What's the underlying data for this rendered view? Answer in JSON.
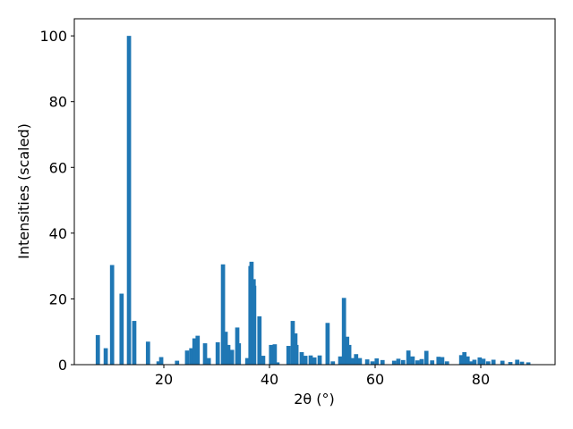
{
  "chart_data": {
    "type": "bar",
    "x_label": "2θ (°)",
    "y_label": "Intensities (scaled)",
    "color": "#1f77b4",
    "bar_width": 0.8,
    "x": [
      7.5,
      9.0,
      10.2,
      12.0,
      13.4,
      14.4,
      17.0,
      19.0,
      19.5,
      22.5,
      24.4,
      25.2,
      25.8,
      26.4,
      27.8,
      28.5,
      30.2,
      31.2,
      31.7,
      32.2,
      32.9,
      33.9,
      34.2,
      35.8,
      36.4,
      36.6,
      37.0,
      37.1,
      38.1,
      38.8,
      40.3,
      41.0,
      41.5,
      43.6,
      44.4,
      44.9,
      45.1,
      46.1,
      46.8,
      47.8,
      48.5,
      49.5,
      51.0,
      52.0,
      53.4,
      54.1,
      54.7,
      55.1,
      55.8,
      56.4,
      57.1,
      58.5,
      59.5,
      60.3,
      61.4,
      63.6,
      64.4,
      65.3,
      66.3,
      67.1,
      68.0,
      68.8,
      69.7,
      70.8,
      72.0,
      72.7,
      73.6,
      76.3,
      76.9,
      77.5,
      78.1,
      78.8,
      79.8,
      80.5,
      81.4,
      82.4,
      84.1,
      85.6,
      86.9,
      87.8,
      89.0
    ],
    "values": [
      9,
      5,
      30.3,
      21.6,
      100,
      13.3,
      7,
      1,
      2.3,
      1.2,
      4.3,
      5,
      8,
      8.8,
      6.5,
      2,
      6.8,
      30.5,
      10,
      6,
      4.5,
      11.3,
      6.5,
      2,
      30,
      31.3,
      26,
      24,
      14.7,
      2.7,
      6,
      6.2,
      0.7,
      5.7,
      13.3,
      9.5,
      6,
      3.8,
      2.7,
      2.8,
      2.2,
      2.8,
      12.7,
      1,
      2.5,
      20.3,
      8.5,
      6,
      2,
      3.2,
      2,
      1.6,
      1,
      1.9,
      1.4,
      1.2,
      1.8,
      1.4,
      4.3,
      2.5,
      1.3,
      1.7,
      4.2,
      1.3,
      2.4,
      2.3,
      1,
      2.9,
      3.8,
      2.5,
      1,
      1.5,
      2.2,
      1.8,
      1,
      1.5,
      1.2,
      0.8,
      1.5,
      0.9,
      0.7
    ],
    "xlim": [
      3.05,
      94.07
    ],
    "ylim": [
      0,
      105.2
    ],
    "xticks": [
      20,
      40,
      60,
      80
    ],
    "yticks": [
      0,
      20,
      40,
      60,
      80,
      100
    ]
  }
}
